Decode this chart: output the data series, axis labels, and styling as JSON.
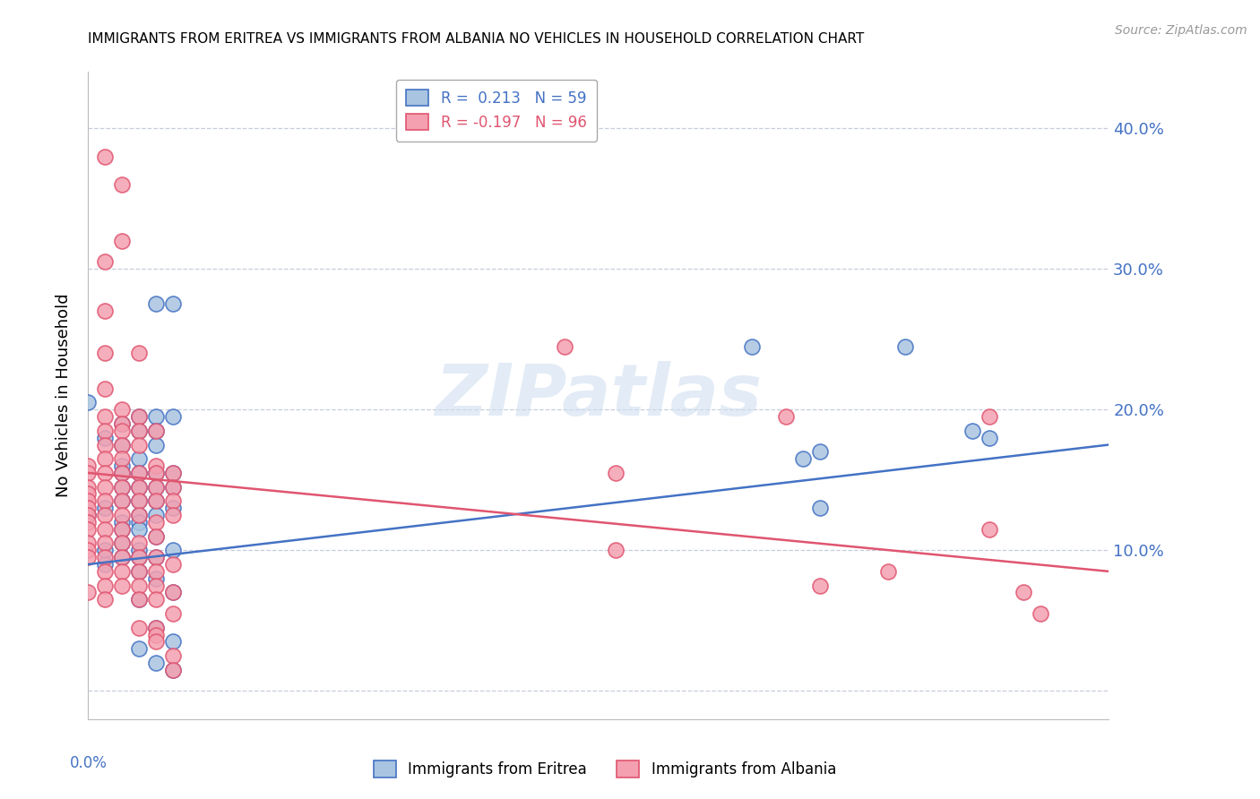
{
  "title": "IMMIGRANTS FROM ERITREA VS IMMIGRANTS FROM ALBANIA NO VEHICLES IN HOUSEHOLD CORRELATION CHART",
  "source": "Source: ZipAtlas.com",
  "ylabel": "No Vehicles in Household",
  "right_yticklabels": [
    "",
    "10.0%",
    "20.0%",
    "30.0%",
    "40.0%"
  ],
  "xlim": [
    0.0,
    0.06
  ],
  "ylim": [
    -0.02,
    0.44
  ],
  "watermark": "ZIPatlas",
  "legend_eritrea_R": "0.213",
  "legend_eritrea_N": "59",
  "legend_albania_R": "-0.197",
  "legend_albania_N": "96",
  "color_eritrea": "#a8c4e0",
  "color_albania": "#f4a0b0",
  "color_eritrea_line": "#4472c4",
  "color_albania_line": "#e05570",
  "color_axis_labels": "#4472c4",
  "scatter_eritrea": [
    [
      0.0,
      0.205
    ],
    [
      0.0,
      0.125
    ],
    [
      0.001,
      0.18
    ],
    [
      0.001,
      0.13
    ],
    [
      0.001,
      0.1
    ],
    [
      0.001,
      0.09
    ],
    [
      0.002,
      0.19
    ],
    [
      0.002,
      0.175
    ],
    [
      0.002,
      0.16
    ],
    [
      0.002,
      0.155
    ],
    [
      0.002,
      0.145
    ],
    [
      0.002,
      0.135
    ],
    [
      0.002,
      0.12
    ],
    [
      0.002,
      0.115
    ],
    [
      0.002,
      0.105
    ],
    [
      0.002,
      0.095
    ],
    [
      0.003,
      0.195
    ],
    [
      0.003,
      0.185
    ],
    [
      0.003,
      0.165
    ],
    [
      0.003,
      0.155
    ],
    [
      0.003,
      0.145
    ],
    [
      0.003,
      0.135
    ],
    [
      0.003,
      0.125
    ],
    [
      0.003,
      0.12
    ],
    [
      0.003,
      0.115
    ],
    [
      0.003,
      0.1
    ],
    [
      0.003,
      0.095
    ],
    [
      0.003,
      0.085
    ],
    [
      0.003,
      0.065
    ],
    [
      0.003,
      0.03
    ],
    [
      0.004,
      0.275
    ],
    [
      0.004,
      0.195
    ],
    [
      0.004,
      0.185
    ],
    [
      0.004,
      0.175
    ],
    [
      0.004,
      0.155
    ],
    [
      0.004,
      0.145
    ],
    [
      0.004,
      0.135
    ],
    [
      0.004,
      0.125
    ],
    [
      0.004,
      0.11
    ],
    [
      0.004,
      0.095
    ],
    [
      0.004,
      0.08
    ],
    [
      0.004,
      0.045
    ],
    [
      0.004,
      0.02
    ],
    [
      0.005,
      0.275
    ],
    [
      0.005,
      0.195
    ],
    [
      0.005,
      0.155
    ],
    [
      0.005,
      0.145
    ],
    [
      0.005,
      0.13
    ],
    [
      0.005,
      0.1
    ],
    [
      0.005,
      0.07
    ],
    [
      0.005,
      0.035
    ],
    [
      0.005,
      0.015
    ],
    [
      0.039,
      0.245
    ],
    [
      0.042,
      0.165
    ],
    [
      0.043,
      0.17
    ],
    [
      0.043,
      0.13
    ],
    [
      0.048,
      0.245
    ],
    [
      0.052,
      0.185
    ],
    [
      0.053,
      0.18
    ]
  ],
  "scatter_albania": [
    [
      0.0,
      0.16
    ],
    [
      0.0,
      0.155
    ],
    [
      0.0,
      0.145
    ],
    [
      0.0,
      0.14
    ],
    [
      0.0,
      0.135
    ],
    [
      0.0,
      0.13
    ],
    [
      0.0,
      0.125
    ],
    [
      0.0,
      0.12
    ],
    [
      0.0,
      0.115
    ],
    [
      0.0,
      0.105
    ],
    [
      0.0,
      0.1
    ],
    [
      0.0,
      0.095
    ],
    [
      0.0,
      0.07
    ],
    [
      0.001,
      0.215
    ],
    [
      0.001,
      0.195
    ],
    [
      0.001,
      0.185
    ],
    [
      0.001,
      0.175
    ],
    [
      0.001,
      0.165
    ],
    [
      0.001,
      0.155
    ],
    [
      0.001,
      0.145
    ],
    [
      0.001,
      0.135
    ],
    [
      0.001,
      0.125
    ],
    [
      0.001,
      0.115
    ],
    [
      0.001,
      0.105
    ],
    [
      0.001,
      0.095
    ],
    [
      0.001,
      0.085
    ],
    [
      0.001,
      0.075
    ],
    [
      0.001,
      0.065
    ],
    [
      0.001,
      0.38
    ],
    [
      0.001,
      0.305
    ],
    [
      0.001,
      0.27
    ],
    [
      0.001,
      0.24
    ],
    [
      0.002,
      0.36
    ],
    [
      0.002,
      0.32
    ],
    [
      0.002,
      0.2
    ],
    [
      0.002,
      0.19
    ],
    [
      0.002,
      0.185
    ],
    [
      0.002,
      0.175
    ],
    [
      0.002,
      0.165
    ],
    [
      0.002,
      0.155
    ],
    [
      0.002,
      0.145
    ],
    [
      0.002,
      0.135
    ],
    [
      0.002,
      0.125
    ],
    [
      0.002,
      0.115
    ],
    [
      0.002,
      0.105
    ],
    [
      0.002,
      0.095
    ],
    [
      0.002,
      0.085
    ],
    [
      0.002,
      0.075
    ],
    [
      0.003,
      0.24
    ],
    [
      0.003,
      0.195
    ],
    [
      0.003,
      0.185
    ],
    [
      0.003,
      0.175
    ],
    [
      0.003,
      0.155
    ],
    [
      0.003,
      0.145
    ],
    [
      0.003,
      0.135
    ],
    [
      0.003,
      0.125
    ],
    [
      0.003,
      0.105
    ],
    [
      0.003,
      0.095
    ],
    [
      0.003,
      0.085
    ],
    [
      0.003,
      0.075
    ],
    [
      0.003,
      0.065
    ],
    [
      0.003,
      0.045
    ],
    [
      0.004,
      0.185
    ],
    [
      0.004,
      0.16
    ],
    [
      0.004,
      0.155
    ],
    [
      0.004,
      0.145
    ],
    [
      0.004,
      0.135
    ],
    [
      0.004,
      0.12
    ],
    [
      0.004,
      0.11
    ],
    [
      0.004,
      0.095
    ],
    [
      0.004,
      0.085
    ],
    [
      0.004,
      0.075
    ],
    [
      0.004,
      0.065
    ],
    [
      0.004,
      0.045
    ],
    [
      0.004,
      0.04
    ],
    [
      0.004,
      0.035
    ],
    [
      0.005,
      0.155
    ],
    [
      0.005,
      0.145
    ],
    [
      0.005,
      0.135
    ],
    [
      0.005,
      0.125
    ],
    [
      0.005,
      0.09
    ],
    [
      0.005,
      0.07
    ],
    [
      0.005,
      0.055
    ],
    [
      0.005,
      0.025
    ],
    [
      0.005,
      0.015
    ],
    [
      0.028,
      0.245
    ],
    [
      0.031,
      0.155
    ],
    [
      0.031,
      0.1
    ],
    [
      0.041,
      0.195
    ],
    [
      0.043,
      0.075
    ],
    [
      0.047,
      0.085
    ],
    [
      0.053,
      0.195
    ],
    [
      0.053,
      0.115
    ],
    [
      0.055,
      0.07
    ],
    [
      0.056,
      0.055
    ]
  ],
  "eritrea_line_x": [
    0.0,
    0.06
  ],
  "eritrea_line_y": [
    0.09,
    0.175
  ],
  "albania_line_x": [
    0.0,
    0.06
  ],
  "albania_line_y": [
    0.155,
    0.085
  ]
}
